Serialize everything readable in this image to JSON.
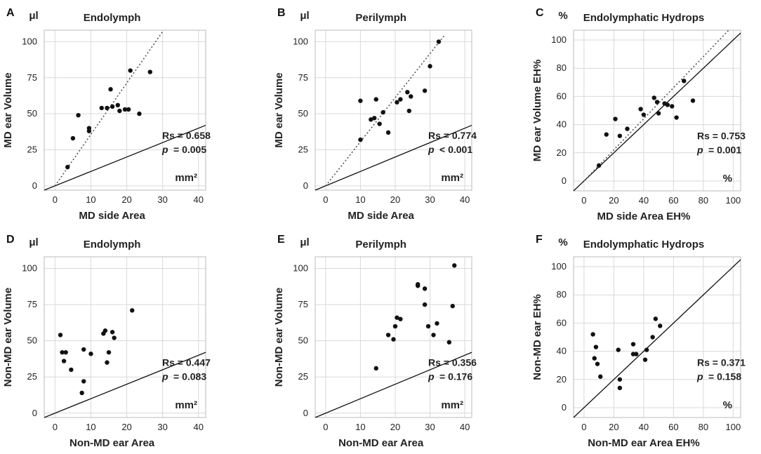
{
  "chart_data": [
    {
      "id": "A",
      "type": "scatter",
      "letter": "A",
      "title": "Endolymph",
      "y_unit": "μl",
      "x_unit": "mm²",
      "xlabel": "MD side Area",
      "ylabel": "MD ear Volume",
      "xlim": [
        -3,
        42
      ],
      "ylim": [
        -3,
        108
      ],
      "x_ticks": [
        0,
        10,
        20,
        30,
        40
      ],
      "y_ticks": [
        0,
        25,
        50,
        75,
        100
      ],
      "stat_r": "Rs = 0.658",
      "stat_p_label": "p",
      "stat_p_value": "= 0.005",
      "fit_line": [
        [
          0,
          0
        ],
        [
          30,
          107
        ]
      ],
      "points": [
        [
          3.5,
          13
        ],
        [
          5,
          33
        ],
        [
          6.5,
          49
        ],
        [
          9.5,
          38
        ],
        [
          9.5,
          40
        ],
        [
          13,
          54
        ],
        [
          14.5,
          54
        ],
        [
          15.5,
          67
        ],
        [
          16,
          55
        ],
        [
          17.5,
          56
        ],
        [
          18,
          52
        ],
        [
          19.5,
          53
        ],
        [
          20.5,
          53
        ],
        [
          21,
          80
        ],
        [
          23.5,
          50
        ],
        [
          26.5,
          79
        ]
      ]
    },
    {
      "id": "B",
      "type": "scatter",
      "letter": "B",
      "title": "Perilymph",
      "y_unit": "μl",
      "x_unit": "mm²",
      "xlabel": "MD side Area",
      "ylabel": "MD ear Volume",
      "xlim": [
        -3,
        42
      ],
      "ylim": [
        -3,
        108
      ],
      "x_ticks": [
        0,
        10,
        20,
        30,
        40
      ],
      "y_ticks": [
        0,
        25,
        50,
        75,
        100
      ],
      "stat_r": "Rs = 0.774",
      "stat_p_label": "p",
      "stat_p_value": "< 0.001",
      "fit_line": [
        [
          0,
          0
        ],
        [
          34,
          104
        ]
      ],
      "points": [
        [
          10,
          32
        ],
        [
          10,
          59
        ],
        [
          13,
          46
        ],
        [
          14,
          47
        ],
        [
          14.5,
          60
        ],
        [
          15.5,
          43
        ],
        [
          16.5,
          51
        ],
        [
          18,
          37
        ],
        [
          20.5,
          58
        ],
        [
          21.5,
          60
        ],
        [
          23.5,
          65
        ],
        [
          24,
          52
        ],
        [
          24.5,
          62
        ],
        [
          28.5,
          66
        ],
        [
          30,
          83
        ],
        [
          32.5,
          100
        ]
      ]
    },
    {
      "id": "C",
      "type": "scatter",
      "letter": "C",
      "title": "Endolymphatic Hydrops",
      "y_unit": "%",
      "x_unit": "%",
      "xlabel": "MD side Area EH%",
      "ylabel": "MD ear Volume EH%",
      "xlim": [
        -7,
        105
      ],
      "ylim": [
        -7,
        107
      ],
      "x_ticks": [
        0,
        20,
        40,
        60,
        80,
        100
      ],
      "y_ticks": [
        0,
        20,
        40,
        60,
        80,
        100
      ],
      "stat_r": "Rs = 0.753",
      "stat_p_label": "p",
      "stat_p_value": "= 0.001",
      "fit_line": [
        [
          0,
          0
        ],
        [
          97,
          107
        ]
      ],
      "points": [
        [
          10,
          11
        ],
        [
          15,
          33
        ],
        [
          21,
          44
        ],
        [
          24,
          32
        ],
        [
          29,
          37
        ],
        [
          38,
          51
        ],
        [
          40,
          47
        ],
        [
          47,
          59
        ],
        [
          49,
          56
        ],
        [
          50,
          48
        ],
        [
          54,
          55
        ],
        [
          56,
          54
        ],
        [
          59,
          53
        ],
        [
          62,
          45
        ],
        [
          67,
          71
        ],
        [
          73,
          57
        ]
      ]
    },
    {
      "id": "D",
      "type": "scatter",
      "letter": "D",
      "title": "Endolymph",
      "y_unit": "μl",
      "x_unit": "mm²",
      "xlabel": "Non-MD ear Area",
      "ylabel": "Non-MD ear Volume",
      "xlim": [
        -3,
        42
      ],
      "ylim": [
        -3,
        108
      ],
      "x_ticks": [
        0,
        10,
        20,
        30,
        40
      ],
      "y_ticks": [
        0,
        25,
        50,
        75,
        100
      ],
      "stat_r": "Rs = 0.447",
      "stat_p_label": "p",
      "stat_p_value": "= 0.083",
      "fit_line": null,
      "points": [
        [
          1.5,
          54
        ],
        [
          2,
          42
        ],
        [
          2.5,
          36
        ],
        [
          3,
          42
        ],
        [
          4.5,
          30
        ],
        [
          7.5,
          14
        ],
        [
          8,
          22
        ],
        [
          8,
          44
        ],
        [
          10,
          41
        ],
        [
          13.5,
          55
        ],
        [
          14,
          57
        ],
        [
          14.5,
          35
        ],
        [
          15,
          42
        ],
        [
          16,
          56
        ],
        [
          16.5,
          52
        ],
        [
          21.5,
          71
        ]
      ]
    },
    {
      "id": "E",
      "type": "scatter",
      "letter": "E",
      "title": "Perilymph",
      "y_unit": "μl",
      "x_unit": "mm²",
      "xlabel": "Non-MD ear Area",
      "ylabel": "Non-MD ear Volume",
      "xlim": [
        -3,
        42
      ],
      "ylim": [
        -3,
        108
      ],
      "x_ticks": [
        0,
        10,
        20,
        30,
        40
      ],
      "y_ticks": [
        0,
        25,
        50,
        75,
        100
      ],
      "stat_r": "Rs = 0.356",
      "stat_p_label": "p",
      "stat_p_value": "= 0.176",
      "fit_line": null,
      "points": [
        [
          14.5,
          31
        ],
        [
          18,
          54
        ],
        [
          19.5,
          51
        ],
        [
          20,
          60
        ],
        [
          20.5,
          66
        ],
        [
          21.5,
          65
        ],
        [
          26.5,
          89
        ],
        [
          26.5,
          88
        ],
        [
          28.5,
          86
        ],
        [
          28.5,
          75
        ],
        [
          29.5,
          60
        ],
        [
          31,
          54
        ],
        [
          32,
          62
        ],
        [
          35.5,
          49
        ],
        [
          36.5,
          74
        ],
        [
          37,
          102
        ]
      ]
    },
    {
      "id": "F",
      "type": "scatter",
      "letter": "F",
      "title": "Endolymphatic Hydrops",
      "y_unit": "%",
      "x_unit": "%",
      "xlabel": "Non-MD ear Area EH%",
      "ylabel": "Non-MD ear EH%",
      "xlim": [
        -7,
        105
      ],
      "ylim": [
        -7,
        107
      ],
      "x_ticks": [
        0,
        20,
        40,
        60,
        80,
        100
      ],
      "y_ticks": [
        0,
        20,
        40,
        60,
        80,
        100
      ],
      "stat_r": "Rs = 0.371",
      "stat_p_label": "p",
      "stat_p_value": "= 0.158",
      "fit_line": null,
      "points": [
        [
          6,
          52
        ],
        [
          7,
          35
        ],
        [
          8,
          43
        ],
        [
          9,
          31
        ],
        [
          11,
          22
        ],
        [
          23,
          41
        ],
        [
          24,
          20
        ],
        [
          24,
          14
        ],
        [
          33,
          45
        ],
        [
          33,
          38
        ],
        [
          35,
          38
        ],
        [
          41,
          34
        ],
        [
          42,
          41
        ],
        [
          46,
          50
        ],
        [
          48,
          63
        ],
        [
          51,
          58
        ]
      ]
    }
  ]
}
